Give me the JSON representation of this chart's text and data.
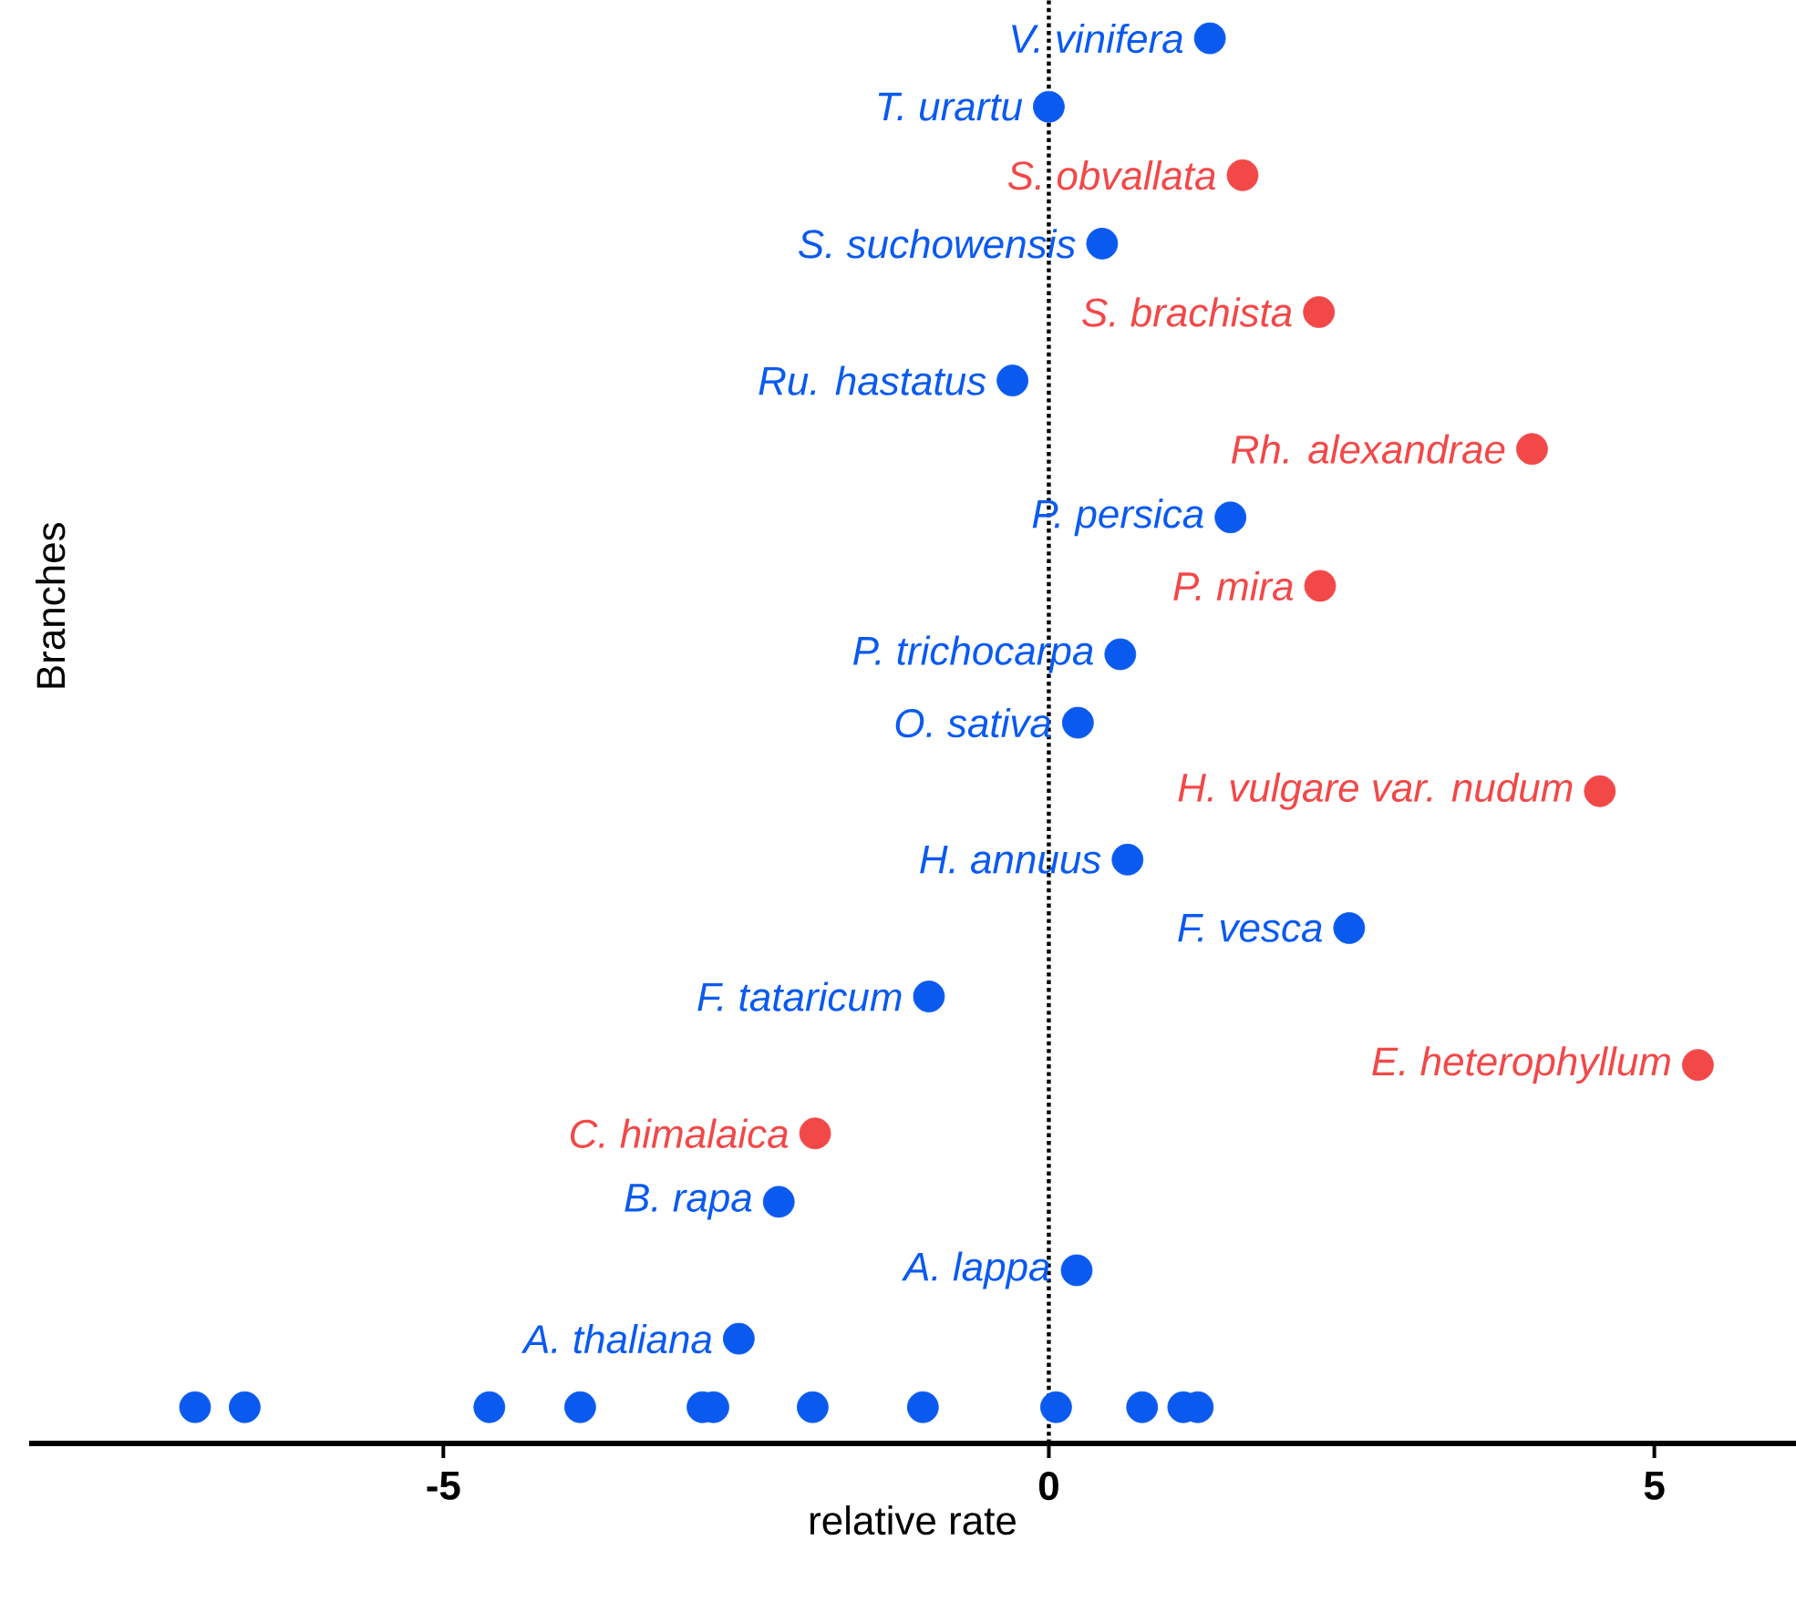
{
  "chart_data": {
    "type": "scatter",
    "orientation": "horizontal",
    "xlabel": "relative rate",
    "ylabel": "Branches",
    "categories": [
      "V. vinifera",
      "T. urartu",
      "S. obvallata",
      "S. suchowensis",
      "S. brachista",
      "Ru. hastatus",
      "Rh. alexandrae",
      "P. persica",
      "P. mira",
      "P. trichocarpa",
      "O. sativa",
      "H. vulgare var. nudum",
      "H. annuus",
      "F. vesca",
      "F. tataricum",
      "E. heterophyllum",
      "C. himalaica",
      "B. rapa",
      "A. lappa",
      "A. thaliana",
      null
    ],
    "series": [
      {
        "color": "#0a5af0",
        "values": [
          1.33,
          0,
          null,
          0.44,
          null,
          -0.3,
          null,
          1.5,
          null,
          0.59,
          0.24,
          null,
          0.65,
          2.48,
          -0.99,
          null,
          null,
          -2.23,
          0.23,
          -2.56,
          null
        ]
      },
      {
        "color": "#f24848",
        "values": [
          null,
          null,
          1.6,
          null,
          2.23,
          null,
          3.99,
          null,
          2.24,
          null,
          null,
          4.55,
          null,
          null,
          null,
          5.36,
          -1.93,
          null,
          null,
          null,
          null
        ]
      },
      {
        "color": "#0a5af0",
        "x": [
          null,
          null,
          null,
          null,
          null,
          null,
          null,
          null,
          null,
          null,
          null,
          null
        ],
        "values": [
          -7.05,
          -6.64,
          -4.62,
          -3.87,
          -2.86,
          -2.77,
          -1.95,
          -1.04,
          0.06,
          0.77,
          1.11,
          1.23
        ]
      }
    ],
    "xlim": [
      -8.42,
      6.17
    ],
    "xticks": [
      -5,
      0,
      5
    ],
    "ref_lines": [
      {
        "axis": "x",
        "value": 0,
        "color": "#000000",
        "line_style": "dotted"
      }
    ],
    "marker": "circle",
    "grid": false
  }
}
